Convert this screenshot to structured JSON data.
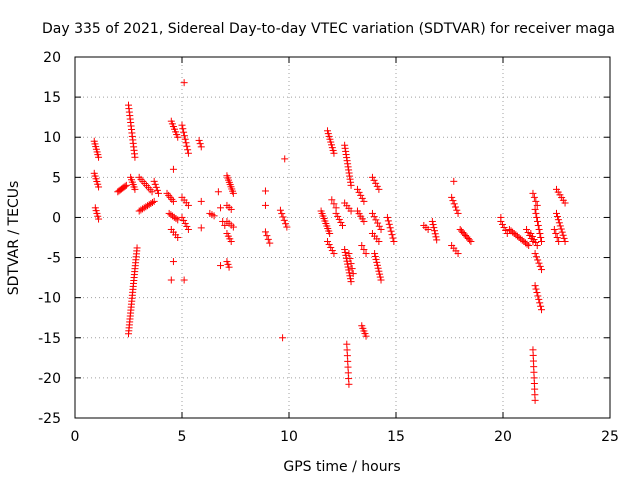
{
  "chart_data": {
    "type": "scatter",
    "title": "Day 335 of 2021, Sidereal Day-to-day VTEC variation (SDTVAR) for receiver maga",
    "xlabel": "GPS time / hours",
    "ylabel": "SDTVAR / TECUs",
    "xlim": [
      0,
      25
    ],
    "ylim": [
      -25,
      20
    ],
    "xticks": [
      0,
      5,
      10,
      15,
      20,
      25
    ],
    "yticks": [
      -25,
      -20,
      -15,
      -10,
      -5,
      0,
      5,
      10,
      15,
      20
    ],
    "grid": true,
    "marker": "+",
    "color": "#ff0000",
    "segments": [
      {
        "x0": 0.9,
        "x1": 1.1,
        "y0": 9.5,
        "y1": 7.5,
        "n": 7
      },
      {
        "x0": 0.9,
        "x1": 1.1,
        "y0": 5.5,
        "y1": 3.8,
        "n": 6
      },
      {
        "x0": 0.95,
        "x1": 1.1,
        "y0": 1.2,
        "y1": -0.2,
        "n": 5
      },
      {
        "x0": 2.0,
        "x1": 2.4,
        "y0": 3.2,
        "y1": 4.0,
        "n": 8
      },
      {
        "x0": 2.5,
        "x1": 2.8,
        "y0": 14.0,
        "y1": 7.5,
        "n": 16
      },
      {
        "x0": 2.6,
        "x1": 2.8,
        "y0": 5.0,
        "y1": 3.5,
        "n": 6
      },
      {
        "x0": 2.5,
        "x1": 2.9,
        "y0": -14.5,
        "y1": -3.8,
        "n": 30
      },
      {
        "x0": 3.0,
        "x1": 3.6,
        "y0": 5.0,
        "y1": 3.2,
        "n": 8
      },
      {
        "x0": 3.0,
        "x1": 3.7,
        "y0": 0.8,
        "y1": 2.0,
        "n": 10
      },
      {
        "x0": 3.7,
        "x1": 3.9,
        "y0": 4.5,
        "y1": 3.0,
        "n": 5
      },
      {
        "x0": 4.3,
        "x1": 4.6,
        "y0": 3.0,
        "y1": 2.0,
        "n": 5
      },
      {
        "x0": 4.5,
        "x1": 4.8,
        "y0": 12.0,
        "y1": 10.0,
        "n": 7
      },
      {
        "x0": 4.4,
        "x1": 4.8,
        "y0": 0.5,
        "y1": -0.3,
        "n": 6
      },
      {
        "x0": 4.5,
        "x1": 4.8,
        "y0": -1.5,
        "y1": -2.5,
        "n": 4
      },
      {
        "x0": 5.0,
        "x1": 5.3,
        "y0": 11.5,
        "y1": 8.0,
        "n": 9
      },
      {
        "x0": 5.0,
        "x1": 5.3,
        "y0": 2.5,
        "y1": 1.5,
        "n": 4
      },
      {
        "x0": 5.0,
        "x1": 5.3,
        "y0": 0.0,
        "y1": -1.5,
        "n": 5
      },
      {
        "x0": 5.8,
        "x1": 5.9,
        "y0": 9.6,
        "y1": 8.8,
        "n": 3
      },
      {
        "x0": 6.3,
        "x1": 6.5,
        "y0": 0.5,
        "y1": 0.2,
        "n": 3
      },
      {
        "x0": 6.9,
        "x1": 7.0,
        "y0": -0.5,
        "y1": -1.0,
        "n": 2
      },
      {
        "x0": 7.1,
        "x1": 7.4,
        "y0": 5.2,
        "y1": 3.0,
        "n": 9
      },
      {
        "x0": 7.1,
        "x1": 7.3,
        "y0": 1.5,
        "y1": 1.0,
        "n": 3
      },
      {
        "x0": 7.1,
        "x1": 7.4,
        "y0": -0.5,
        "y1": -1.2,
        "n": 4
      },
      {
        "x0": 7.1,
        "x1": 7.3,
        "y0": -2.0,
        "y1": -3.0,
        "n": 4
      },
      {
        "x0": 7.1,
        "x1": 7.2,
        "y0": -5.5,
        "y1": -6.2,
        "n": 3
      },
      {
        "x0": 8.9,
        "x1": 9.1,
        "y0": -1.8,
        "y1": -3.2,
        "n": 4
      },
      {
        "x0": 9.6,
        "x1": 9.9,
        "y0": 0.9,
        "y1": -1.2,
        "n": 6
      },
      {
        "x0": 11.5,
        "x1": 11.9,
        "y0": 0.8,
        "y1": -2.0,
        "n": 10
      },
      {
        "x0": 11.8,
        "x1": 12.1,
        "y0": 10.8,
        "y1": 8.0,
        "n": 9
      },
      {
        "x0": 11.8,
        "x1": 12.1,
        "y0": -3.0,
        "y1": -4.5,
        "n": 5
      },
      {
        "x0": 12.0,
        "x1": 12.2,
        "y0": 2.2,
        "y1": 1.2,
        "n": 3
      },
      {
        "x0": 12.2,
        "x1": 12.5,
        "y0": 0.5,
        "y1": -1.0,
        "n": 5
      },
      {
        "x0": 12.6,
        "x1": 12.9,
        "y0": 9.0,
        "y1": 4.0,
        "n": 14
      },
      {
        "x0": 12.6,
        "x1": 12.9,
        "y0": -4.0,
        "y1": -8.0,
        "n": 12
      },
      {
        "x0": 12.8,
        "x1": 13.0,
        "y0": -4.5,
        "y1": -7.0,
        "n": 5
      },
      {
        "x0": 12.7,
        "x1": 12.8,
        "y0": -15.8,
        "y1": -20.8,
        "n": 8
      },
      {
        "x0": 12.6,
        "x1": 12.9,
        "y0": 1.8,
        "y1": 0.8,
        "n": 4
      },
      {
        "x0": 13.2,
        "x1": 13.5,
        "y0": 3.5,
        "y1": 2.0,
        "n": 5
      },
      {
        "x0": 13.2,
        "x1": 13.5,
        "y0": 0.8,
        "y1": -0.5,
        "n": 5
      },
      {
        "x0": 13.4,
        "x1": 13.6,
        "y0": -3.5,
        "y1": -4.5,
        "n": 3
      },
      {
        "x0": 13.4,
        "x1": 13.6,
        "y0": -13.5,
        "y1": -14.8,
        "n": 5
      },
      {
        "x0": 13.9,
        "x1": 14.2,
        "y0": 5.0,
        "y1": 3.5,
        "n": 5
      },
      {
        "x0": 13.9,
        "x1": 14.3,
        "y0": 0.5,
        "y1": -1.5,
        "n": 6
      },
      {
        "x0": 13.9,
        "x1": 14.2,
        "y0": -2.0,
        "y1": -3.0,
        "n": 4
      },
      {
        "x0": 14.0,
        "x1": 14.3,
        "y0": -4.5,
        "y1": -7.8,
        "n": 10
      },
      {
        "x0": 14.6,
        "x1": 14.9,
        "y0": 0.0,
        "y1": -3.0,
        "n": 8
      },
      {
        "x0": 16.3,
        "x1": 16.5,
        "y0": -1.0,
        "y1": -1.5,
        "n": 3
      },
      {
        "x0": 16.7,
        "x1": 16.9,
        "y0": -0.5,
        "y1": -2.8,
        "n": 7
      },
      {
        "x0": 17.6,
        "x1": 17.9,
        "y0": 2.5,
        "y1": 0.5,
        "n": 6
      },
      {
        "x0": 17.6,
        "x1": 17.9,
        "y0": -3.5,
        "y1": -4.5,
        "n": 4
      },
      {
        "x0": 18.0,
        "x1": 18.5,
        "y0": -1.5,
        "y1": -3.0,
        "n": 9
      },
      {
        "x0": 19.9,
        "x1": 20.2,
        "y0": -0.5,
        "y1": -2.0,
        "n": 5
      },
      {
        "x0": 20.3,
        "x1": 21.2,
        "y0": -1.5,
        "y1": -3.5,
        "n": 13
      },
      {
        "x0": 21.1,
        "x1": 21.4,
        "y0": -1.5,
        "y1": -3.0,
        "n": 5
      },
      {
        "x0": 21.3,
        "x1": 21.6,
        "y0": -2.0,
        "y1": -3.5,
        "n": 5
      },
      {
        "x0": 21.4,
        "x1": 21.6,
        "y0": 3.0,
        "y1": 1.5,
        "n": 4
      },
      {
        "x0": 21.5,
        "x1": 21.8,
        "y0": 1.0,
        "y1": -3.0,
        "n": 9
      },
      {
        "x0": 21.5,
        "x1": 21.8,
        "y0": -4.5,
        "y1": -6.5,
        "n": 6
      },
      {
        "x0": 21.5,
        "x1": 21.8,
        "y0": -8.5,
        "y1": -11.5,
        "n": 8
      },
      {
        "x0": 21.4,
        "x1": 21.5,
        "y0": -16.5,
        "y1": -22.8,
        "n": 10
      },
      {
        "x0": 22.4,
        "x1": 22.6,
        "y0": -1.5,
        "y1": -3.0,
        "n": 4
      },
      {
        "x0": 22.5,
        "x1": 22.9,
        "y0": 3.5,
        "y1": 1.8,
        "n": 6
      },
      {
        "x0": 22.5,
        "x1": 22.9,
        "y0": 0.5,
        "y1": -3.0,
        "n": 10
      }
    ],
    "points": [
      {
        "x": 5.1,
        "y": 16.8
      },
      {
        "x": 4.6,
        "y": 6.0
      },
      {
        "x": 4.6,
        "y": -5.5
      },
      {
        "x": 4.5,
        "y": -7.8
      },
      {
        "x": 5.1,
        "y": -7.8
      },
      {
        "x": 5.9,
        "y": 2.0
      },
      {
        "x": 5.9,
        "y": -1.3
      },
      {
        "x": 6.7,
        "y": 3.2
      },
      {
        "x": 6.8,
        "y": 1.2
      },
      {
        "x": 6.8,
        "y": -6.0
      },
      {
        "x": 8.9,
        "y": 3.3
      },
      {
        "x": 8.9,
        "y": 1.5
      },
      {
        "x": 9.8,
        "y": 7.3
      },
      {
        "x": 9.7,
        "y": -15.0
      },
      {
        "x": 17.7,
        "y": 4.5
      },
      {
        "x": 19.9,
        "y": 0.0
      }
    ]
  }
}
